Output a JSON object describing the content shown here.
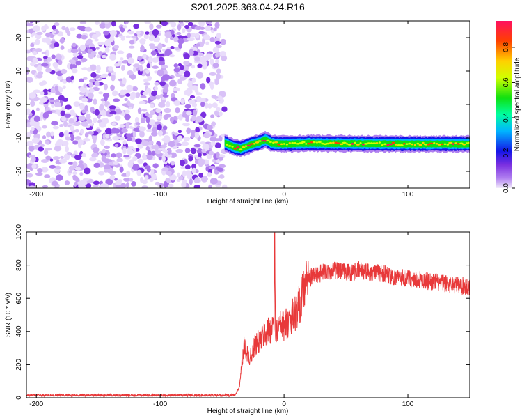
{
  "figure": {
    "title": "S201.2025.363.04.24.R16"
  },
  "chart_data": [
    {
      "id": "spectrogram",
      "type": "heatmap",
      "xlabel": "Height of straight line (km)",
      "ylabel": "Frequency (Hz)",
      "xlim": [
        -208,
        150
      ],
      "ylim": [
        -25,
        25
      ],
      "xticks": [
        -200,
        -100,
        0,
        100
      ],
      "yticks": [
        -20,
        -10,
        0,
        10,
        20
      ],
      "xtick_labels": [
        "-200",
        "-100",
        "0",
        "100"
      ],
      "ytick_labels": [
        "-20",
        "-10",
        "0",
        "10",
        "20"
      ],
      "noise_region_x": [
        -208,
        -48
      ],
      "signal_x": [
        -48,
        -40,
        -35,
        -30,
        -25,
        -20,
        -15,
        -10,
        0,
        20,
        50,
        100,
        150
      ],
      "signal_freq": [
        -11.5,
        -12.8,
        -13.2,
        -12.5,
        -11.8,
        -11.4,
        -10.5,
        -11.6,
        -11.8,
        -11.6,
        -11.7,
        -11.8,
        -11.8
      ],
      "colorbar": {
        "label": "Normalized spectral amplitude",
        "range": [
          0.0,
          0.95
        ],
        "ticks": [
          0.0,
          0.2,
          0.4,
          0.6,
          0.8
        ],
        "tick_labels": [
          "0.0",
          "0.2",
          "0.4",
          "0.6",
          "0.8"
        ],
        "colors": [
          "#f2ecfb",
          "#7a2fe0",
          "#1515e8",
          "#00b4ff",
          "#00ffa0",
          "#10e010",
          "#d0ff00",
          "#ffd000",
          "#ff4000",
          "#ff1060"
        ]
      }
    },
    {
      "id": "snr",
      "type": "line",
      "xlabel": "Height of straight line (km)",
      "ylabel": "SNR (10 * v/v)",
      "xlim": [
        -208,
        150
      ],
      "ylim": [
        0,
        1000
      ],
      "xticks": [
        -200,
        -100,
        0,
        100
      ],
      "yticks": [
        0,
        200,
        400,
        600,
        800,
        1000
      ],
      "xtick_labels": [
        "-200",
        "-100",
        "0",
        "100"
      ],
      "ytick_labels": [
        "0",
        "200",
        "400",
        "600",
        "800",
        "1000"
      ],
      "color": "#e8393a",
      "series": [
        {
          "x": [
            -208,
            -150,
            -100,
            -60,
            -40,
            -36,
            -34,
            -32,
            -30,
            -28,
            -25,
            -22,
            -20,
            -18,
            -15,
            -12,
            -10,
            -8,
            -7.5,
            -7,
            -6,
            -5,
            -2,
            0,
            5,
            10,
            14,
            16,
            18,
            20,
            25,
            30,
            35,
            40,
            45,
            50,
            55,
            60,
            70,
            80,
            90,
            100,
            110,
            120,
            130,
            140,
            150
          ],
          "y": [
            15,
            15,
            15,
            15,
            15,
            60,
            200,
            320,
            270,
            240,
            300,
            330,
            340,
            360,
            390,
            400,
            420,
            460,
            1000,
            410,
            400,
            420,
            440,
            430,
            480,
            520,
            600,
            660,
            700,
            720,
            740,
            750,
            765,
            770,
            760,
            760,
            755,
            770,
            760,
            750,
            730,
            720,
            710,
            700,
            690,
            680,
            670
          ]
        }
      ]
    }
  ]
}
